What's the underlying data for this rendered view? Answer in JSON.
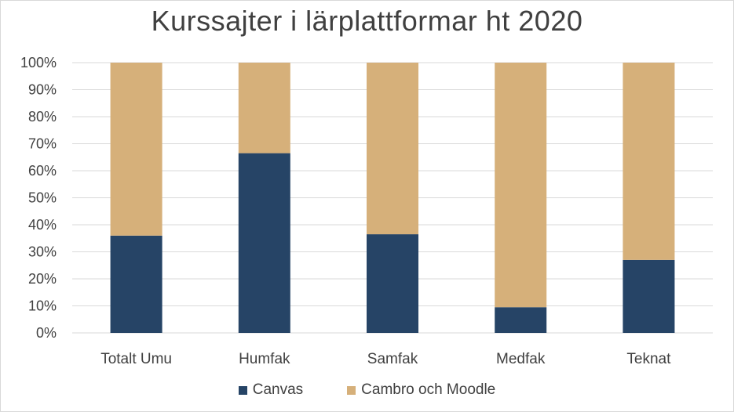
{
  "chart_data": {
    "type": "bar",
    "stacked": true,
    "title": "Kurssajter i lärplattformar ht 2020",
    "categories": [
      "Totalt Umu",
      "Humfak",
      "Samfak",
      "Medfak",
      "Teknat"
    ],
    "series": [
      {
        "name": "Canvas",
        "color": "#264466",
        "values": [
          36,
          66.5,
          36.5,
          9.5,
          27
        ]
      },
      {
        "name": "Cambro och Moodle",
        "color": "#d6b07a",
        "values": [
          64,
          33.5,
          63.5,
          90.5,
          73
        ]
      }
    ],
    "ylim": [
      0,
      100
    ],
    "yticks": [
      "0%",
      "10%",
      "20%",
      "30%",
      "40%",
      "50%",
      "60%",
      "70%",
      "80%",
      "90%",
      "100%"
    ],
    "grid": true,
    "legend_position": "bottom"
  }
}
